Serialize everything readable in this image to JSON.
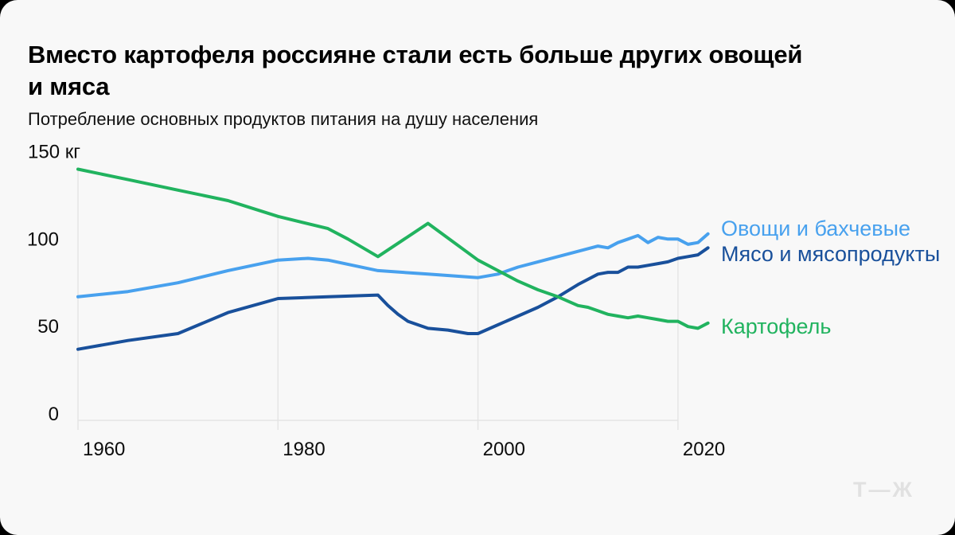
{
  "card": {
    "title_lines": [
      "Вместо картофеля россияне стали есть больше других овощей",
      "и мяса"
    ],
    "subtitle": "Потребление основных продуктов питания на душу населения",
    "logo": "Т—Ж"
  },
  "colors": {
    "background": "#f8f8f8",
    "grid": "#e4e4e4",
    "axis_text": "#0c0c0c",
    "logo": "#e1e1e1"
  },
  "chart_data": {
    "type": "line",
    "title": "Вместо картофеля россияне стали есть больше других овощей и мяса",
    "subtitle": "Потребление основных продуктов питания на душу населения",
    "unit": "кг",
    "grid": "vertical-only",
    "legend_position": "right-of-line-ends",
    "x_axis": {
      "min": 1960,
      "max": 2023,
      "ticks": [
        {
          "value": 1960,
          "label": "1960"
        },
        {
          "value": 1980,
          "label": "1980"
        },
        {
          "value": 2000,
          "label": "2000"
        },
        {
          "value": 2020,
          "label": "2020"
        }
      ]
    },
    "y_axis": {
      "min": 0,
      "max": 150,
      "ticks": [
        {
          "value": 0,
          "label": "0"
        },
        {
          "value": 50,
          "label": "50"
        },
        {
          "value": 100,
          "label": "100"
        },
        {
          "value": 150,
          "label": "150 кг"
        }
      ]
    },
    "series": [
      {
        "key": "vegetables",
        "name": "Овощи и бахчевые",
        "color": "#48a1ee",
        "points": [
          [
            1960,
            67
          ],
          [
            1965,
            70
          ],
          [
            1970,
            75
          ],
          [
            1975,
            82
          ],
          [
            1980,
            88
          ],
          [
            1983,
            89
          ],
          [
            1985,
            88
          ],
          [
            1990,
            82
          ],
          [
            1995,
            80
          ],
          [
            2000,
            78
          ],
          [
            2002,
            80
          ],
          [
            2004,
            84
          ],
          [
            2006,
            87
          ],
          [
            2008,
            90
          ],
          [
            2010,
            93
          ],
          [
            2012,
            96
          ],
          [
            2013,
            95
          ],
          [
            2014,
            98
          ],
          [
            2015,
            100
          ],
          [
            2016,
            102
          ],
          [
            2017,
            98
          ],
          [
            2018,
            101
          ],
          [
            2019,
            100
          ],
          [
            2020,
            100
          ],
          [
            2021,
            97
          ],
          [
            2022,
            98
          ],
          [
            2023,
            103
          ]
        ]
      },
      {
        "key": "meat",
        "name": "Мясо и мясопродукты",
        "color": "#19509b",
        "points": [
          [
            1960,
            37
          ],
          [
            1965,
            42
          ],
          [
            1970,
            46
          ],
          [
            1975,
            58
          ],
          [
            1980,
            66
          ],
          [
            1985,
            67
          ],
          [
            1990,
            68
          ],
          [
            1991,
            62
          ],
          [
            1992,
            57
          ],
          [
            1993,
            53
          ],
          [
            1995,
            49
          ],
          [
            1997,
            48
          ],
          [
            1999,
            46
          ],
          [
            2000,
            46
          ],
          [
            2002,
            51
          ],
          [
            2004,
            56
          ],
          [
            2006,
            61
          ],
          [
            2008,
            67
          ],
          [
            2010,
            74
          ],
          [
            2012,
            80
          ],
          [
            2013,
            81
          ],
          [
            2014,
            81
          ],
          [
            2015,
            84
          ],
          [
            2016,
            84
          ],
          [
            2017,
            85
          ],
          [
            2018,
            86
          ],
          [
            2019,
            87
          ],
          [
            2020,
            89
          ],
          [
            2021,
            90
          ],
          [
            2022,
            91
          ],
          [
            2023,
            95
          ]
        ]
      },
      {
        "key": "potatoes",
        "name": "Картофель",
        "color": "#21b35f",
        "points": [
          [
            1960,
            140
          ],
          [
            1965,
            134
          ],
          [
            1970,
            128
          ],
          [
            1975,
            122
          ],
          [
            1980,
            113
          ],
          [
            1985,
            106
          ],
          [
            1987,
            100
          ],
          [
            1990,
            90
          ],
          [
            1995,
            109
          ],
          [
            2000,
            88
          ],
          [
            2002,
            82
          ],
          [
            2004,
            76
          ],
          [
            2006,
            71
          ],
          [
            2008,
            67
          ],
          [
            2010,
            62
          ],
          [
            2011,
            61
          ],
          [
            2012,
            59
          ],
          [
            2013,
            57
          ],
          [
            2014,
            56
          ],
          [
            2015,
            55
          ],
          [
            2016,
            56
          ],
          [
            2017,
            55
          ],
          [
            2018,
            54
          ],
          [
            2019,
            53
          ],
          [
            2020,
            53
          ],
          [
            2021,
            50
          ],
          [
            2022,
            49
          ],
          [
            2023,
            52
          ]
        ]
      }
    ]
  }
}
